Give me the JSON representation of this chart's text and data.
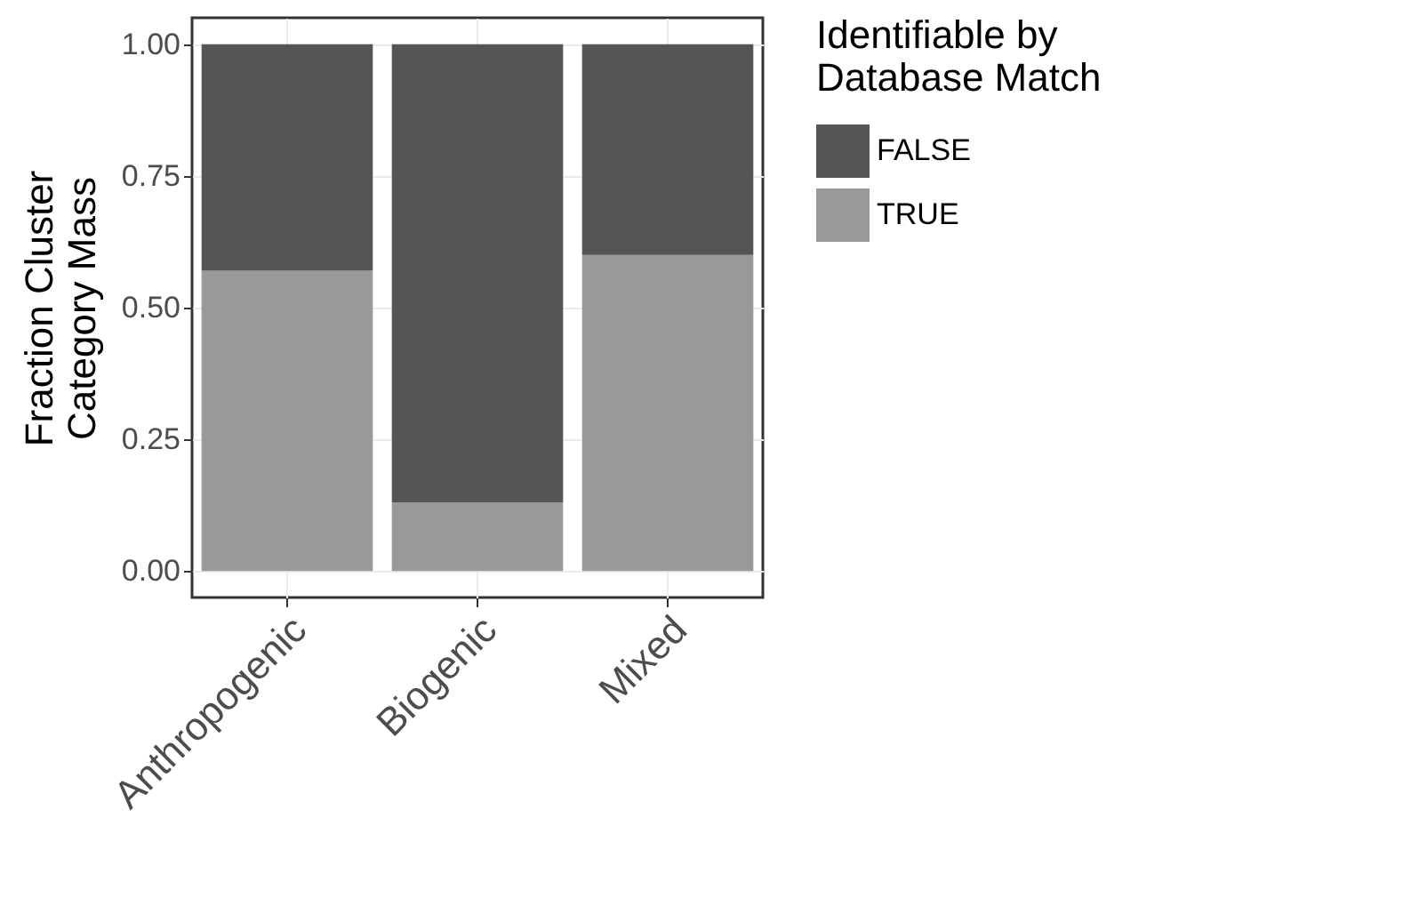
{
  "chart_data": {
    "type": "bar",
    "stacked": true,
    "ylabel": "Fraction Cluster\nCategory Mass",
    "legend_title": "Identifiable by\nDatabase Match",
    "categories": [
      "Anthropogenic",
      "Biogenic",
      "Mixed"
    ],
    "series": [
      {
        "name": "TRUE",
        "color": "#999999",
        "values": [
          0.57,
          0.13,
          0.6
        ]
      },
      {
        "name": "FALSE",
        "color": "#555555",
        "values": [
          0.43,
          0.87,
          0.4
        ]
      }
    ],
    "ylim": [
      -0.05,
      1.05
    ],
    "yticks": [
      {
        "value": 0,
        "label": "0.00"
      },
      {
        "value": 0.25,
        "label": "0.25"
      },
      {
        "value": 0.5,
        "label": "0.50"
      },
      {
        "value": 0.75,
        "label": "0.75"
      },
      {
        "value": 1,
        "label": "1.00"
      }
    ],
    "grid": true,
    "legend": "right"
  }
}
